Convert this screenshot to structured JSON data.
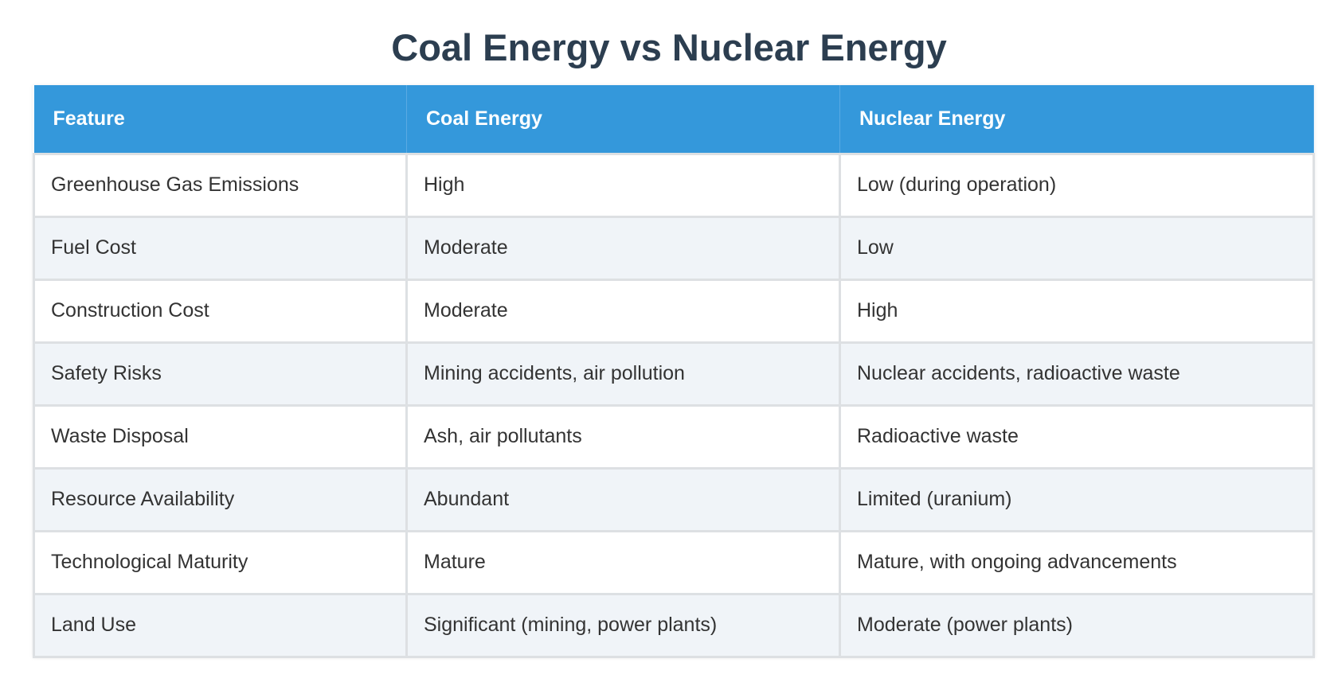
{
  "header": {
    "title": "Coal Energy vs Nuclear Energy"
  },
  "table": {
    "columns": [
      "Feature",
      "Coal Energy",
      "Nuclear Energy"
    ],
    "rows": [
      [
        "Greenhouse Gas Emissions",
        "High",
        "Low (during operation)"
      ],
      [
        "Fuel Cost",
        "Moderate",
        "Low"
      ],
      [
        "Construction Cost",
        "Moderate",
        "High"
      ],
      [
        "Safety Risks",
        "Mining accidents, air pollution",
        "Nuclear accidents, radioactive waste"
      ],
      [
        "Waste Disposal",
        "Ash, air pollutants",
        "Radioactive waste"
      ],
      [
        "Resource Availability",
        "Abundant",
        "Limited (uranium)"
      ],
      [
        "Technological Maturity",
        "Mature",
        "Mature, with ongoing advancements"
      ],
      [
        "Land Use",
        "Significant (mining, power plants)",
        "Moderate (power plants)"
      ]
    ]
  }
}
